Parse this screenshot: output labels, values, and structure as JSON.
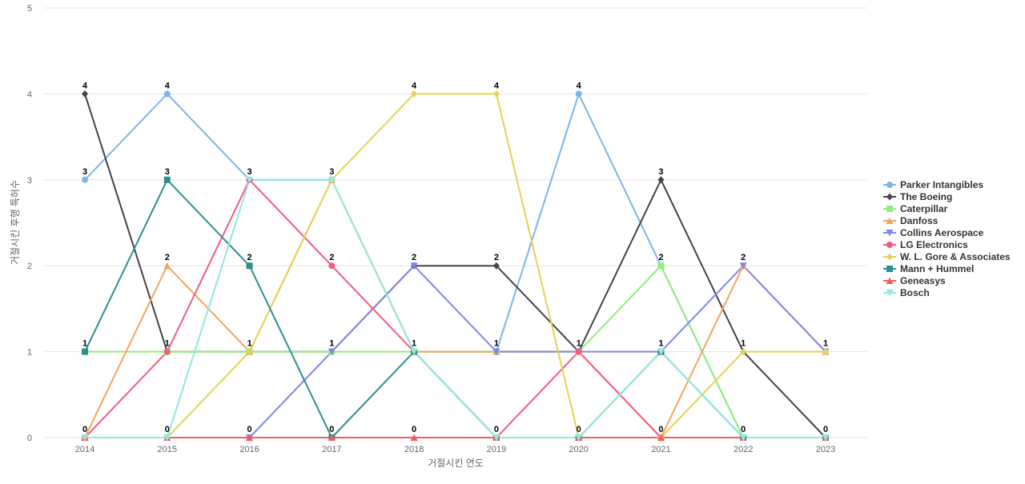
{
  "chart_data": {
    "type": "line",
    "title": "",
    "xlabel": "거절시킨 연도",
    "ylabel": "거절시킨 후행 특허수",
    "x": [
      "2014",
      "2015",
      "2016",
      "2017",
      "2018",
      "2019",
      "2020",
      "2021",
      "2022",
      "2023"
    ],
    "ylim": [
      0,
      5
    ],
    "yticks": [
      0,
      1,
      2,
      3,
      4,
      5
    ],
    "grid": true,
    "legend_position": "right",
    "series": [
      {
        "name": "Parker Intangibles",
        "color": "#7cb5ec",
        "marker": "circle",
        "values": [
          3,
          4,
          3,
          3,
          1,
          1,
          4,
          2,
          0,
          0
        ]
      },
      {
        "name": "The Boeing",
        "color": "#434348",
        "marker": "diamond",
        "values": [
          4,
          1,
          1,
          1,
          2,
          2,
          1,
          3,
          1,
          0
        ]
      },
      {
        "name": "Caterpillar",
        "color": "#90ed7d",
        "marker": "square",
        "values": [
          1,
          1,
          1,
          1,
          1,
          1,
          1,
          2,
          0,
          0
        ]
      },
      {
        "name": "Danfoss",
        "color": "#f7a35c",
        "marker": "triangle",
        "values": [
          0,
          2,
          1,
          3,
          1,
          1,
          1,
          0,
          2,
          1
        ]
      },
      {
        "name": "Collins Aerospace",
        "color": "#8085e9",
        "marker": "triangle-down",
        "values": [
          0,
          0,
          0,
          1,
          2,
          1,
          1,
          1,
          2,
          1
        ]
      },
      {
        "name": "LG Electronics",
        "color": "#f15c80",
        "marker": "circle",
        "values": [
          0,
          1,
          3,
          2,
          1,
          0,
          1,
          0,
          0,
          0
        ]
      },
      {
        "name": "W. L. Gore & Associates",
        "color": "#e4d354",
        "marker": "diamond",
        "values": [
          0,
          0,
          1,
          3,
          4,
          4,
          0,
          0,
          1,
          1
        ]
      },
      {
        "name": "Mann + Hummel",
        "color": "#2b908f",
        "marker": "square",
        "values": [
          1,
          3,
          2,
          0,
          1,
          0,
          0,
          1,
          0,
          0
        ]
      },
      {
        "name": "Geneasys",
        "color": "#f45b5b",
        "marker": "triangle",
        "values": [
          0,
          0,
          0,
          0,
          0,
          0,
          0,
          0,
          0,
          0
        ]
      },
      {
        "name": "Bosch",
        "color": "#91e8e1",
        "marker": "triangle-down",
        "values": [
          0,
          0,
          3,
          3,
          1,
          0,
          0,
          1,
          0,
          0
        ]
      }
    ],
    "data_labels": [
      {
        "x": "2014",
        "label": "4",
        "value": 4
      },
      {
        "x": "2014",
        "label": "3",
        "value": 3
      },
      {
        "x": "2014",
        "label": "1",
        "value": 1
      },
      {
        "x": "2014",
        "label": "0",
        "value": 0
      },
      {
        "x": "2015",
        "label": "4",
        "value": 4
      },
      {
        "x": "2015",
        "label": "3",
        "value": 3
      },
      {
        "x": "2015",
        "label": "2",
        "value": 2
      },
      {
        "x": "2015",
        "label": "1",
        "value": 1
      },
      {
        "x": "2015",
        "label": "0",
        "value": 0
      },
      {
        "x": "2016",
        "label": "3",
        "value": 3
      },
      {
        "x": "2016",
        "label": "2",
        "value": 2
      },
      {
        "x": "2016",
        "label": "1",
        "value": 1
      },
      {
        "x": "2016",
        "label": "0",
        "value": 0
      },
      {
        "x": "2017",
        "label": "3",
        "value": 3
      },
      {
        "x": "2017",
        "label": "2",
        "value": 2
      },
      {
        "x": "2017",
        "label": "1",
        "value": 1
      },
      {
        "x": "2017",
        "label": "0",
        "value": 0
      },
      {
        "x": "2018",
        "label": "4",
        "value": 4
      },
      {
        "x": "2018",
        "label": "2",
        "value": 2
      },
      {
        "x": "2018",
        "label": "1",
        "value": 1
      },
      {
        "x": "2018",
        "label": "0",
        "value": 0
      },
      {
        "x": "2019",
        "label": "4",
        "value": 4
      },
      {
        "x": "2019",
        "label": "2",
        "value": 2
      },
      {
        "x": "2019",
        "label": "1",
        "value": 1
      },
      {
        "x": "2019",
        "label": "0",
        "value": 0
      },
      {
        "x": "2020",
        "label": "4",
        "value": 4
      },
      {
        "x": "2020",
        "label": "1",
        "value": 1
      },
      {
        "x": "2020",
        "label": "0",
        "value": 0
      },
      {
        "x": "2021",
        "label": "3",
        "value": 3
      },
      {
        "x": "2021",
        "label": "2",
        "value": 2
      },
      {
        "x": "2021",
        "label": "1",
        "value": 1
      },
      {
        "x": "2021",
        "label": "0",
        "value": 0
      },
      {
        "x": "2022",
        "label": "2",
        "value": 2
      },
      {
        "x": "2022",
        "label": "1",
        "value": 1
      },
      {
        "x": "2022",
        "label": "0",
        "value": 0
      },
      {
        "x": "2023",
        "label": "1",
        "value": 1
      },
      {
        "x": "2023",
        "label": "0",
        "value": 0
      }
    ]
  }
}
